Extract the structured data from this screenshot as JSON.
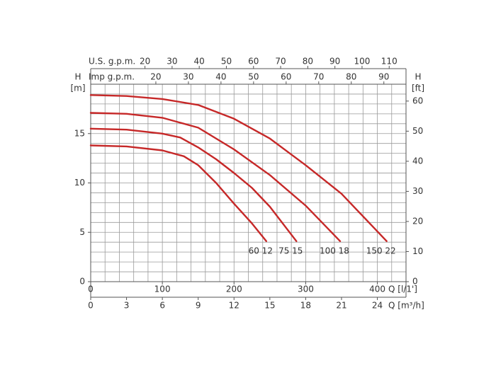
{
  "chart_data": {
    "type": "line",
    "x_label": "Q [l/1']",
    "y_label": "H",
    "y_unit": "[m]",
    "y2_label": "H",
    "y2_unit": "[ft]",
    "xlim": [
      0,
      440
    ],
    "xticks": [
      0,
      100,
      200,
      300,
      400
    ],
    "ylim": [
      0,
      20
    ],
    "yticks": [
      0,
      5,
      10,
      15
    ],
    "y2lim": [
      0,
      65.6
    ],
    "y2ticks": [
      0,
      10,
      20,
      30,
      40,
      50,
      60
    ],
    "xgrid": [
      0,
      20,
      40,
      60,
      80,
      100,
      120,
      140,
      160,
      180,
      200,
      220,
      240,
      260,
      280,
      300,
      320,
      340,
      360,
      380,
      400,
      420,
      440
    ],
    "ygrid": [
      0,
      1,
      2,
      3,
      4,
      5,
      6,
      7,
      8,
      9,
      10,
      11,
      12,
      13,
      14,
      15,
      16,
      17,
      18,
      19,
      20
    ],
    "extra_x_axes": [
      {
        "label": "U.S. g.p.m.",
        "position": "top",
        "lim": [
          0,
          116.2
        ],
        "ticks": [
          20,
          30,
          40,
          50,
          60,
          70,
          80,
          90,
          100,
          110
        ]
      },
      {
        "label": "Imp g.p.m.",
        "position": "top",
        "lim": [
          0,
          96.8
        ],
        "ticks": [
          20,
          30,
          40,
          50,
          60,
          70,
          80,
          90
        ]
      },
      {
        "label": "Q [m³/h]",
        "position": "bottom",
        "lim": [
          0,
          26.4
        ],
        "ticks": [
          0,
          3,
          6,
          9,
          12,
          15,
          18,
          21,
          24
        ]
      }
    ],
    "series": [
      {
        "name": "60 12",
        "color": "#c62828",
        "x": [
          0,
          50,
          100,
          130,
          150,
          175,
          200,
          225,
          245
        ],
        "values": [
          13.8,
          13.7,
          13.3,
          12.7,
          11.8,
          10.0,
          7.9,
          5.9,
          4.1
        ]
      },
      {
        "name": "75 15",
        "color": "#c62828",
        "x": [
          0,
          50,
          100,
          125,
          150,
          175,
          200,
          225,
          250,
          287
        ],
        "values": [
          15.5,
          15.4,
          15.0,
          14.6,
          13.6,
          12.4,
          11.0,
          9.5,
          7.6,
          4.1
        ]
      },
      {
        "name": "100 18",
        "color": "#c62828",
        "x": [
          0,
          50,
          100,
          150,
          200,
          250,
          300,
          348
        ],
        "values": [
          17.1,
          17.0,
          16.6,
          15.6,
          13.4,
          10.8,
          7.7,
          4.1
        ]
      },
      {
        "name": "150 22",
        "color": "#c62828",
        "x": [
          0,
          50,
          100,
          150,
          200,
          250,
          300,
          350,
          413
        ],
        "values": [
          18.9,
          18.8,
          18.5,
          17.9,
          16.5,
          14.5,
          11.8,
          8.9,
          4.1
        ]
      }
    ]
  }
}
